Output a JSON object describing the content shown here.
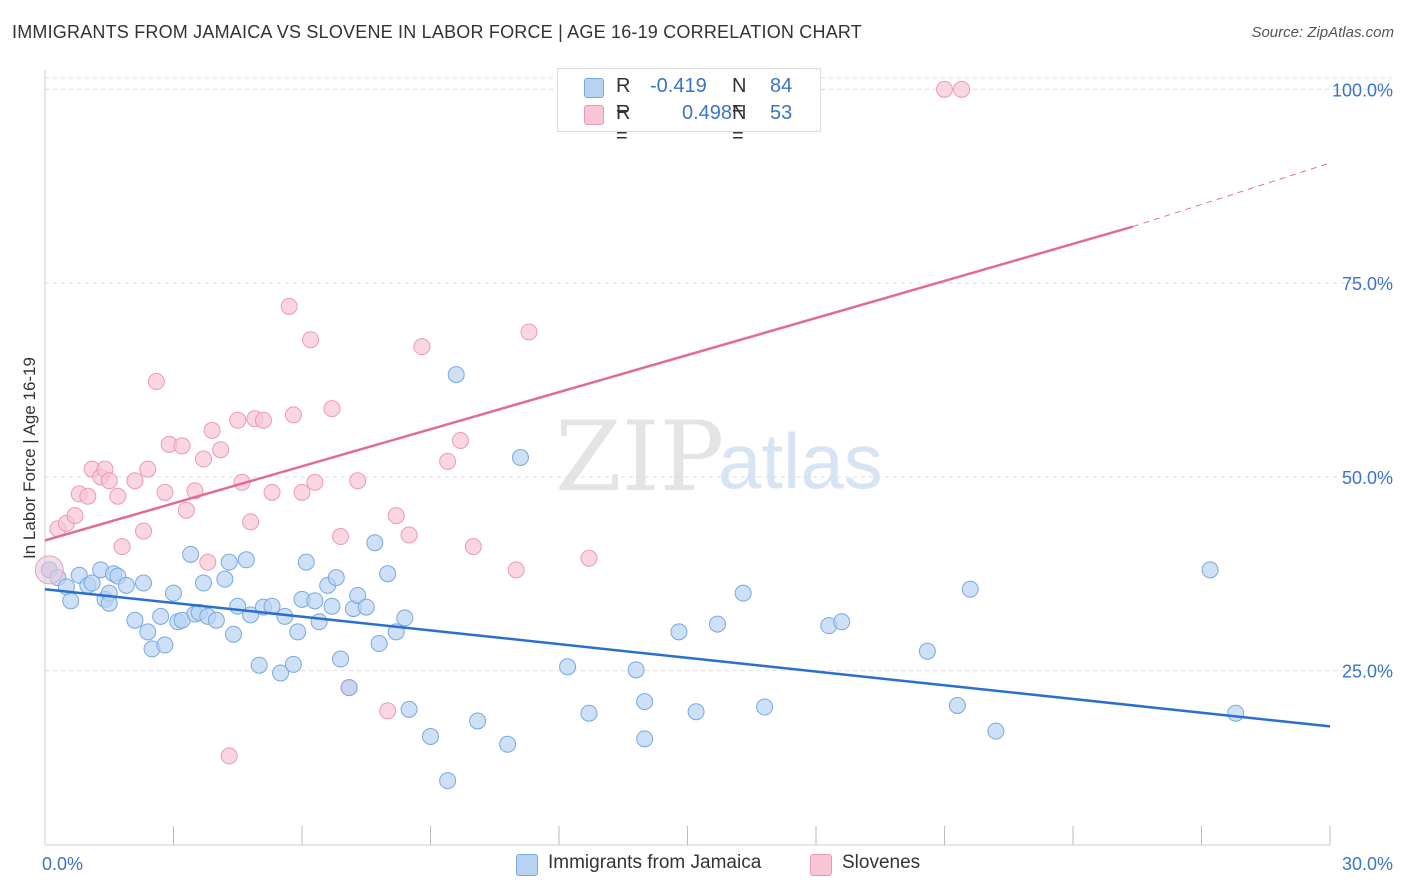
{
  "title": "IMMIGRANTS FROM JAMAICA VS SLOVENE IN LABOR FORCE | AGE 16-19 CORRELATION CHART",
  "source": "Source: ZipAtlas.com",
  "watermark": {
    "zip": "ZIP",
    "atlas": "atlas"
  },
  "legend": {
    "rows": [
      {
        "r_label": "R =",
        "r_value": "-0.419",
        "n_label": "N =",
        "n_value": "84"
      },
      {
        "r_label": "R =",
        "r_value": "0.498",
        "n_label": "N =",
        "n_value": "53"
      }
    ]
  },
  "colors": {
    "jamaica_fill": "#b8d3f2",
    "jamaica_stroke": "#7aa8e0",
    "jamaica_line": "#2a6fcf",
    "slovene_fill": "#f7c5d5",
    "slovene_stroke": "#ec9ab4",
    "slovene_line": "#e06c93",
    "tick_label": "#3a74c6",
    "grid": "#dddddd"
  },
  "chart_data": {
    "type": "scatter",
    "ylabel": "In Labor Force | Age 16-19",
    "xlabel": "",
    "xlim": [
      0,
      30
    ],
    "ylim": [
      2.5,
      102.5
    ],
    "x_tick_labels": [
      {
        "value": 0,
        "label": "0.0%"
      },
      {
        "value": 30,
        "label": "30.0%"
      }
    ],
    "y_tick_labels": [
      {
        "value": 25,
        "label": "25.0%"
      },
      {
        "value": 50,
        "label": "50.0%"
      },
      {
        "value": 75,
        "label": "75.0%"
      },
      {
        "value": 100,
        "label": "100.0%"
      }
    ],
    "grid": "horizontal dashed",
    "legend_position": "top-center",
    "series": [
      {
        "name": "Immigrants from Jamaica",
        "trend": {
          "x": [
            0,
            30
          ],
          "y": [
            35.5,
            17.8
          ]
        },
        "points": [
          [
            0.1,
            38
          ],
          [
            0.3,
            37
          ],
          [
            0.5,
            35.8
          ],
          [
            0.6,
            34
          ],
          [
            0.8,
            37.3
          ],
          [
            1.0,
            36
          ],
          [
            1.1,
            36.3
          ],
          [
            1.3,
            38
          ],
          [
            1.4,
            34.2
          ],
          [
            1.5,
            35
          ],
          [
            1.6,
            37.5
          ],
          [
            1.7,
            37.2
          ],
          [
            1.9,
            36
          ],
          [
            2.1,
            31.5
          ],
          [
            2.3,
            36.3
          ],
          [
            2.4,
            30
          ],
          [
            2.5,
            27.8
          ],
          [
            2.7,
            32
          ],
          [
            2.8,
            28.3
          ],
          [
            3.0,
            35
          ],
          [
            3.1,
            31.3
          ],
          [
            3.2,
            31.5
          ],
          [
            3.4,
            40
          ],
          [
            3.5,
            32.3
          ],
          [
            3.6,
            32.5
          ],
          [
            3.7,
            36.3
          ],
          [
            3.8,
            32
          ],
          [
            4.0,
            31.5
          ],
          [
            4.2,
            36.8
          ],
          [
            4.3,
            39
          ],
          [
            4.4,
            29.7
          ],
          [
            4.5,
            33.3
          ],
          [
            4.7,
            39.3
          ],
          [
            4.8,
            32.2
          ],
          [
            5.0,
            25.7
          ],
          [
            5.1,
            33.2
          ],
          [
            5.3,
            33.3
          ],
          [
            5.5,
            24.7
          ],
          [
            5.6,
            32
          ],
          [
            5.8,
            25.8
          ],
          [
            5.9,
            30
          ],
          [
            6.0,
            34.2
          ],
          [
            6.1,
            39
          ],
          [
            6.3,
            34
          ],
          [
            6.4,
            31.3
          ],
          [
            6.6,
            36
          ],
          [
            6.7,
            33.3
          ],
          [
            6.8,
            37
          ],
          [
            6.9,
            26.5
          ],
          [
            7.1,
            22.8
          ],
          [
            7.2,
            33
          ],
          [
            7.3,
            34.7
          ],
          [
            7.5,
            33.2
          ],
          [
            7.7,
            41.5
          ],
          [
            7.8,
            28.5
          ],
          [
            8.0,
            37.5
          ],
          [
            8.2,
            30
          ],
          [
            8.4,
            31.8
          ],
          [
            8.5,
            20
          ],
          [
            9.0,
            16.5
          ],
          [
            9.4,
            10.8
          ],
          [
            9.6,
            63.2
          ],
          [
            10.1,
            18.5
          ],
          [
            10.8,
            15.5
          ],
          [
            11.1,
            52.5
          ],
          [
            12.2,
            25.5
          ],
          [
            12.7,
            19.5
          ],
          [
            13.8,
            25.1
          ],
          [
            14.0,
            21
          ],
          [
            14.0,
            16.2
          ],
          [
            14.8,
            30
          ],
          [
            15.2,
            19.7
          ],
          [
            15.7,
            31
          ],
          [
            16.3,
            35
          ],
          [
            16.8,
            20.3
          ],
          [
            18.3,
            30.8
          ],
          [
            18.6,
            31.3
          ],
          [
            20.6,
            27.5
          ],
          [
            21.3,
            20.5
          ],
          [
            21.6,
            35.5
          ],
          [
            22.2,
            17.2
          ],
          [
            27.8,
            19.5
          ],
          [
            27.2,
            38
          ],
          [
            1.5,
            33.7
          ]
        ]
      },
      {
        "name": "Slovenes",
        "trend": {
          "x": [
            0,
            25.4
          ],
          "y": [
            41.8,
            82.3
          ]
        },
        "trend_dashed": {
          "x": [
            25.4,
            30
          ],
          "y": [
            82.3,
            90.5
          ]
        },
        "points": [
          [
            0.1,
            38
          ],
          [
            0.3,
            43.3
          ],
          [
            0.5,
            44
          ],
          [
            0.7,
            45
          ],
          [
            0.8,
            47.8
          ],
          [
            1.0,
            47.5
          ],
          [
            1.1,
            51
          ],
          [
            1.3,
            50
          ],
          [
            1.4,
            51
          ],
          [
            1.5,
            49.5
          ],
          [
            1.7,
            47.5
          ],
          [
            1.8,
            41
          ],
          [
            2.1,
            49.5
          ],
          [
            2.3,
            43
          ],
          [
            2.4,
            51
          ],
          [
            2.6,
            62.3
          ],
          [
            2.8,
            48
          ],
          [
            2.9,
            54.2
          ],
          [
            3.2,
            54
          ],
          [
            3.3,
            45.7
          ],
          [
            3.5,
            48.2
          ],
          [
            3.7,
            52.3
          ],
          [
            3.8,
            39
          ],
          [
            3.9,
            56
          ],
          [
            4.1,
            53.5
          ],
          [
            4.3,
            14
          ],
          [
            4.5,
            57.3
          ],
          [
            4.6,
            49.3
          ],
          [
            4.8,
            44.2
          ],
          [
            4.9,
            57.5
          ],
          [
            5.1,
            57.3
          ],
          [
            5.3,
            48
          ],
          [
            5.7,
            72
          ],
          [
            5.8,
            58
          ],
          [
            6.0,
            48
          ],
          [
            6.2,
            67.7
          ],
          [
            6.3,
            49.3
          ],
          [
            6.7,
            58.8
          ],
          [
            6.9,
            42.3
          ],
          [
            7.1,
            22.8
          ],
          [
            7.3,
            49.5
          ],
          [
            8.0,
            19.8
          ],
          [
            8.2,
            45
          ],
          [
            8.5,
            42.5
          ],
          [
            8.8,
            66.8
          ],
          [
            9.4,
            52
          ],
          [
            9.7,
            54.7
          ],
          [
            10.0,
            41
          ],
          [
            11.0,
            38
          ],
          [
            11.3,
            68.7
          ],
          [
            12.7,
            39.5
          ],
          [
            21.0,
            100
          ],
          [
            21.4,
            100
          ]
        ]
      }
    ]
  }
}
